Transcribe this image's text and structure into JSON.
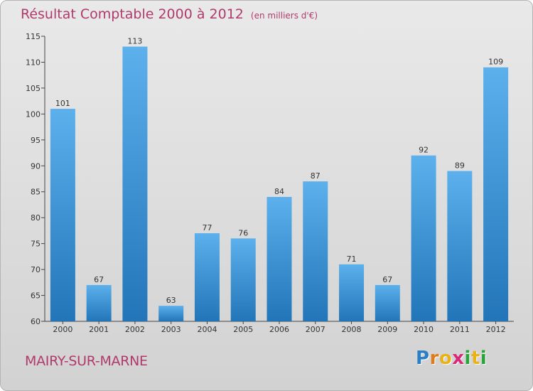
{
  "chart_data": {
    "type": "bar",
    "title": "Résultat Comptable 2000 à 2012",
    "subtitle": "(en milliers d'€)",
    "categories": [
      "2000",
      "2001",
      "2002",
      "2003",
      "2004",
      "2005",
      "2006",
      "2007",
      "2008",
      "2009",
      "2010",
      "2011",
      "2012"
    ],
    "values": [
      101,
      67,
      113,
      63,
      77,
      76,
      84,
      87,
      71,
      67,
      92,
      89,
      109
    ],
    "ylim": [
      60,
      115
    ],
    "yticks": [
      60,
      65,
      70,
      75,
      80,
      85,
      90,
      95,
      100,
      105,
      110,
      115
    ],
    "xlabel": "",
    "ylabel": "",
    "grid": false,
    "bar_color": "#3d94d6"
  },
  "commune": "MAIRY-SUR-MARNE",
  "logo": {
    "letters": [
      "P",
      "r",
      "o",
      "x",
      "i",
      "t",
      "i"
    ],
    "colors": [
      "#2a7fc4",
      "#e07b1c",
      "#e8b21a",
      "#d8287a",
      "#2aa33c",
      "#e8b21a",
      "#2aa33c"
    ]
  }
}
